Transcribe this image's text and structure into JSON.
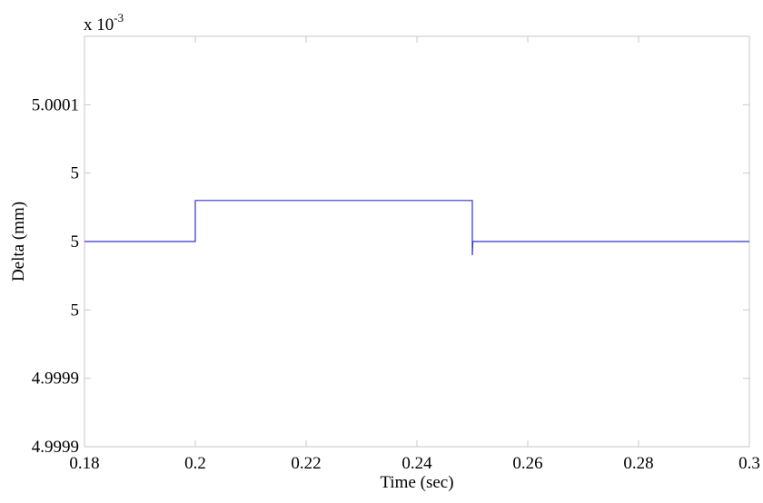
{
  "chart_data": {
    "type": "line",
    "title": "",
    "xlabel": "Time (sec)",
    "ylabel": "Delta (mm)",
    "y_multiplier": {
      "base": "x 10",
      "exponent": "-3"
    },
    "xlim": [
      0.18,
      0.3
    ],
    "ylim": [
      4.99985,
      5.00015
    ],
    "x_ticks": [
      0.18,
      0.2,
      0.22,
      0.24,
      0.26,
      0.28,
      0.3
    ],
    "x_tick_labels": [
      "0.18",
      "0.2",
      "0.22",
      "0.24",
      "0.26",
      "0.28",
      "0.3"
    ],
    "y_ticks": [
      4.99985,
      4.9999,
      4.99995,
      5.0,
      5.00005,
      5.0001,
      5.00015
    ],
    "y_tick_labels": [
      "4.9999",
      "4.9999",
      "5",
      "5",
      "5",
      "5.0001",
      ""
    ],
    "grid": false,
    "legend": "none",
    "series": [
      {
        "color": "#3333cc",
        "x": [
          0.18,
          0.2,
          0.2,
          0.25,
          0.25,
          0.2501,
          0.3
        ],
        "y": [
          5.0,
          5.0,
          5.00003,
          5.00003,
          4.99999,
          5.0,
          5.0
        ]
      }
    ]
  }
}
